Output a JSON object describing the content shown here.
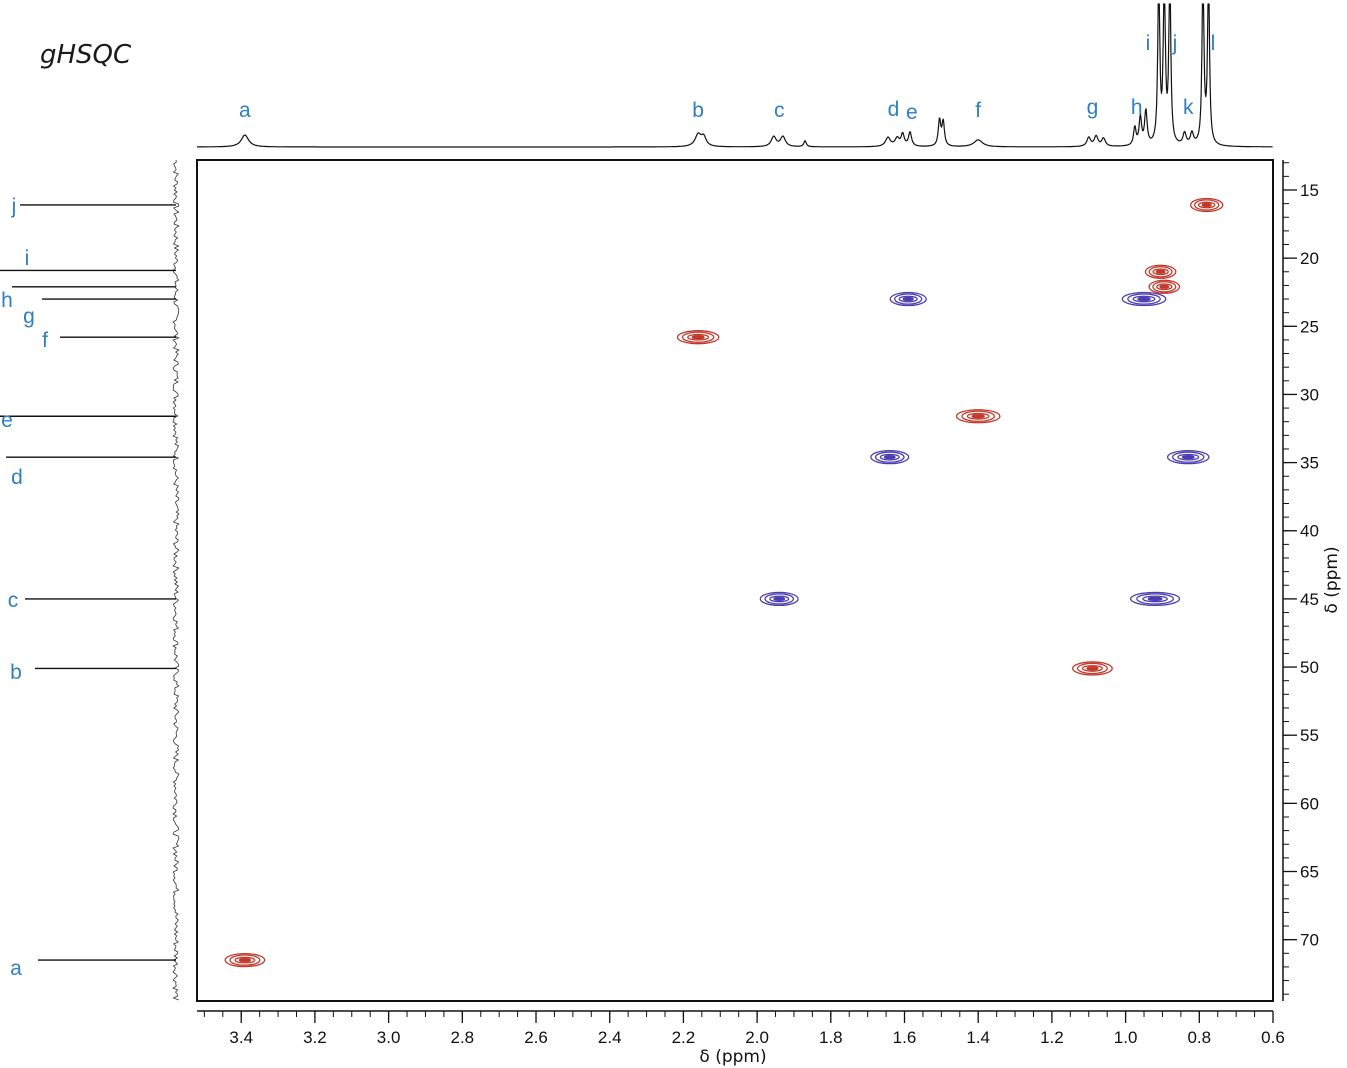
{
  "chart_data": {
    "type": "scatter",
    "title": "gHSQC",
    "xlabel": "δ (ppm)",
    "ylabel": "δ (ppm)",
    "xlim": [
      3.52,
      0.6
    ],
    "ylim": [
      74.5,
      12.8
    ],
    "x_ticks": [
      "3.4",
      "3.2",
      "3.0",
      "2.8",
      "2.6",
      "2.4",
      "2.2",
      "2.0",
      "1.8",
      "1.6",
      "1.4",
      "1.2",
      "1.0",
      "0.8",
      "0.6"
    ],
    "x_tick_values": [
      3.4,
      3.2,
      3.0,
      2.8,
      2.6,
      2.4,
      2.2,
      2.0,
      1.8,
      1.6,
      1.4,
      1.2,
      1.0,
      0.8,
      0.6
    ],
    "y_ticks": [
      "15",
      "20",
      "25",
      "30",
      "35",
      "40",
      "45",
      "50",
      "55",
      "60",
      "65",
      "70"
    ],
    "y_tick_values": [
      15,
      20,
      25,
      30,
      35,
      40,
      45,
      50,
      55,
      60,
      65,
      70
    ],
    "grid": false,
    "colors": {
      "positive": "#c0392b",
      "negative": "#4b3db0",
      "label": "#2f7fc1",
      "axis": "#111111"
    },
    "proton_labels": [
      {
        "label": "a",
        "x": 3.39
      },
      {
        "label": "b",
        "x": 2.16
      },
      {
        "label": "c",
        "x": 1.94
      },
      {
        "label": "d",
        "x": 1.63
      },
      {
        "label": "e",
        "x": 1.58
      },
      {
        "label": "f",
        "x": 1.4
      },
      {
        "label": "g",
        "x": 1.09
      },
      {
        "label": "h",
        "x": 0.97
      },
      {
        "label": "i",
        "x": 0.925
      },
      {
        "label": "j",
        "x": 0.88
      },
      {
        "label": "k",
        "x": 0.83
      },
      {
        "label": "l",
        "x": 0.785
      }
    ],
    "carbon_labels": [
      {
        "label": "j",
        "y": 16.1
      },
      {
        "label": "i",
        "y": 20.4
      },
      {
        "label": "h",
        "y": 22.7
      },
      {
        "label": "g",
        "y": 23.6
      },
      {
        "label": "f",
        "y": 25.8
      },
      {
        "label": "e",
        "y": 31.7
      },
      {
        "label": "d",
        "y": 35.4
      },
      {
        "label": "c",
        "y": 45.0
      },
      {
        "label": "b",
        "y": 50.0
      },
      {
        "label": "a",
        "y": 71.5
      }
    ],
    "carbon_peaks": [
      16.1,
      21.0,
      22.0,
      23.0,
      25.8,
      31.6,
      34.6,
      45.0,
      50.1,
      71.5
    ],
    "proton_peaks": [
      3.39,
      2.16,
      1.94,
      1.87,
      1.64,
      1.6,
      1.58,
      1.5,
      1.4,
      1.09,
      0.97,
      0.94,
      0.91,
      0.89,
      0.83,
      0.785,
      0.775
    ],
    "cross_peaks": [
      {
        "x": 3.39,
        "y": 71.5,
        "phase": "positive",
        "w": 0.075
      },
      {
        "x": 2.16,
        "y": 25.8,
        "phase": "positive",
        "w": 0.08
      },
      {
        "x": 1.94,
        "y": 45.0,
        "phase": "negative",
        "w": 0.07
      },
      {
        "x": 1.64,
        "y": 34.6,
        "phase": "negative",
        "w": 0.07
      },
      {
        "x": 1.59,
        "y": 23.0,
        "phase": "negative",
        "w": 0.065
      },
      {
        "x": 1.4,
        "y": 31.6,
        "phase": "positive",
        "w": 0.085
      },
      {
        "x": 1.09,
        "y": 50.1,
        "phase": "positive",
        "w": 0.075
      },
      {
        "x": 0.95,
        "y": 23.0,
        "phase": "negative",
        "w": 0.085
      },
      {
        "x": 0.92,
        "y": 45.0,
        "phase": "negative",
        "w": 0.1
      },
      {
        "x": 0.905,
        "y": 21.0,
        "phase": "positive",
        "w": 0.05
      },
      {
        "x": 0.895,
        "y": 22.1,
        "phase": "positive",
        "w": 0.05
      },
      {
        "x": 0.83,
        "y": 34.6,
        "phase": "negative",
        "w": 0.08
      },
      {
        "x": 0.78,
        "y": 16.1,
        "phase": "positive",
        "w": 0.055
      }
    ]
  }
}
